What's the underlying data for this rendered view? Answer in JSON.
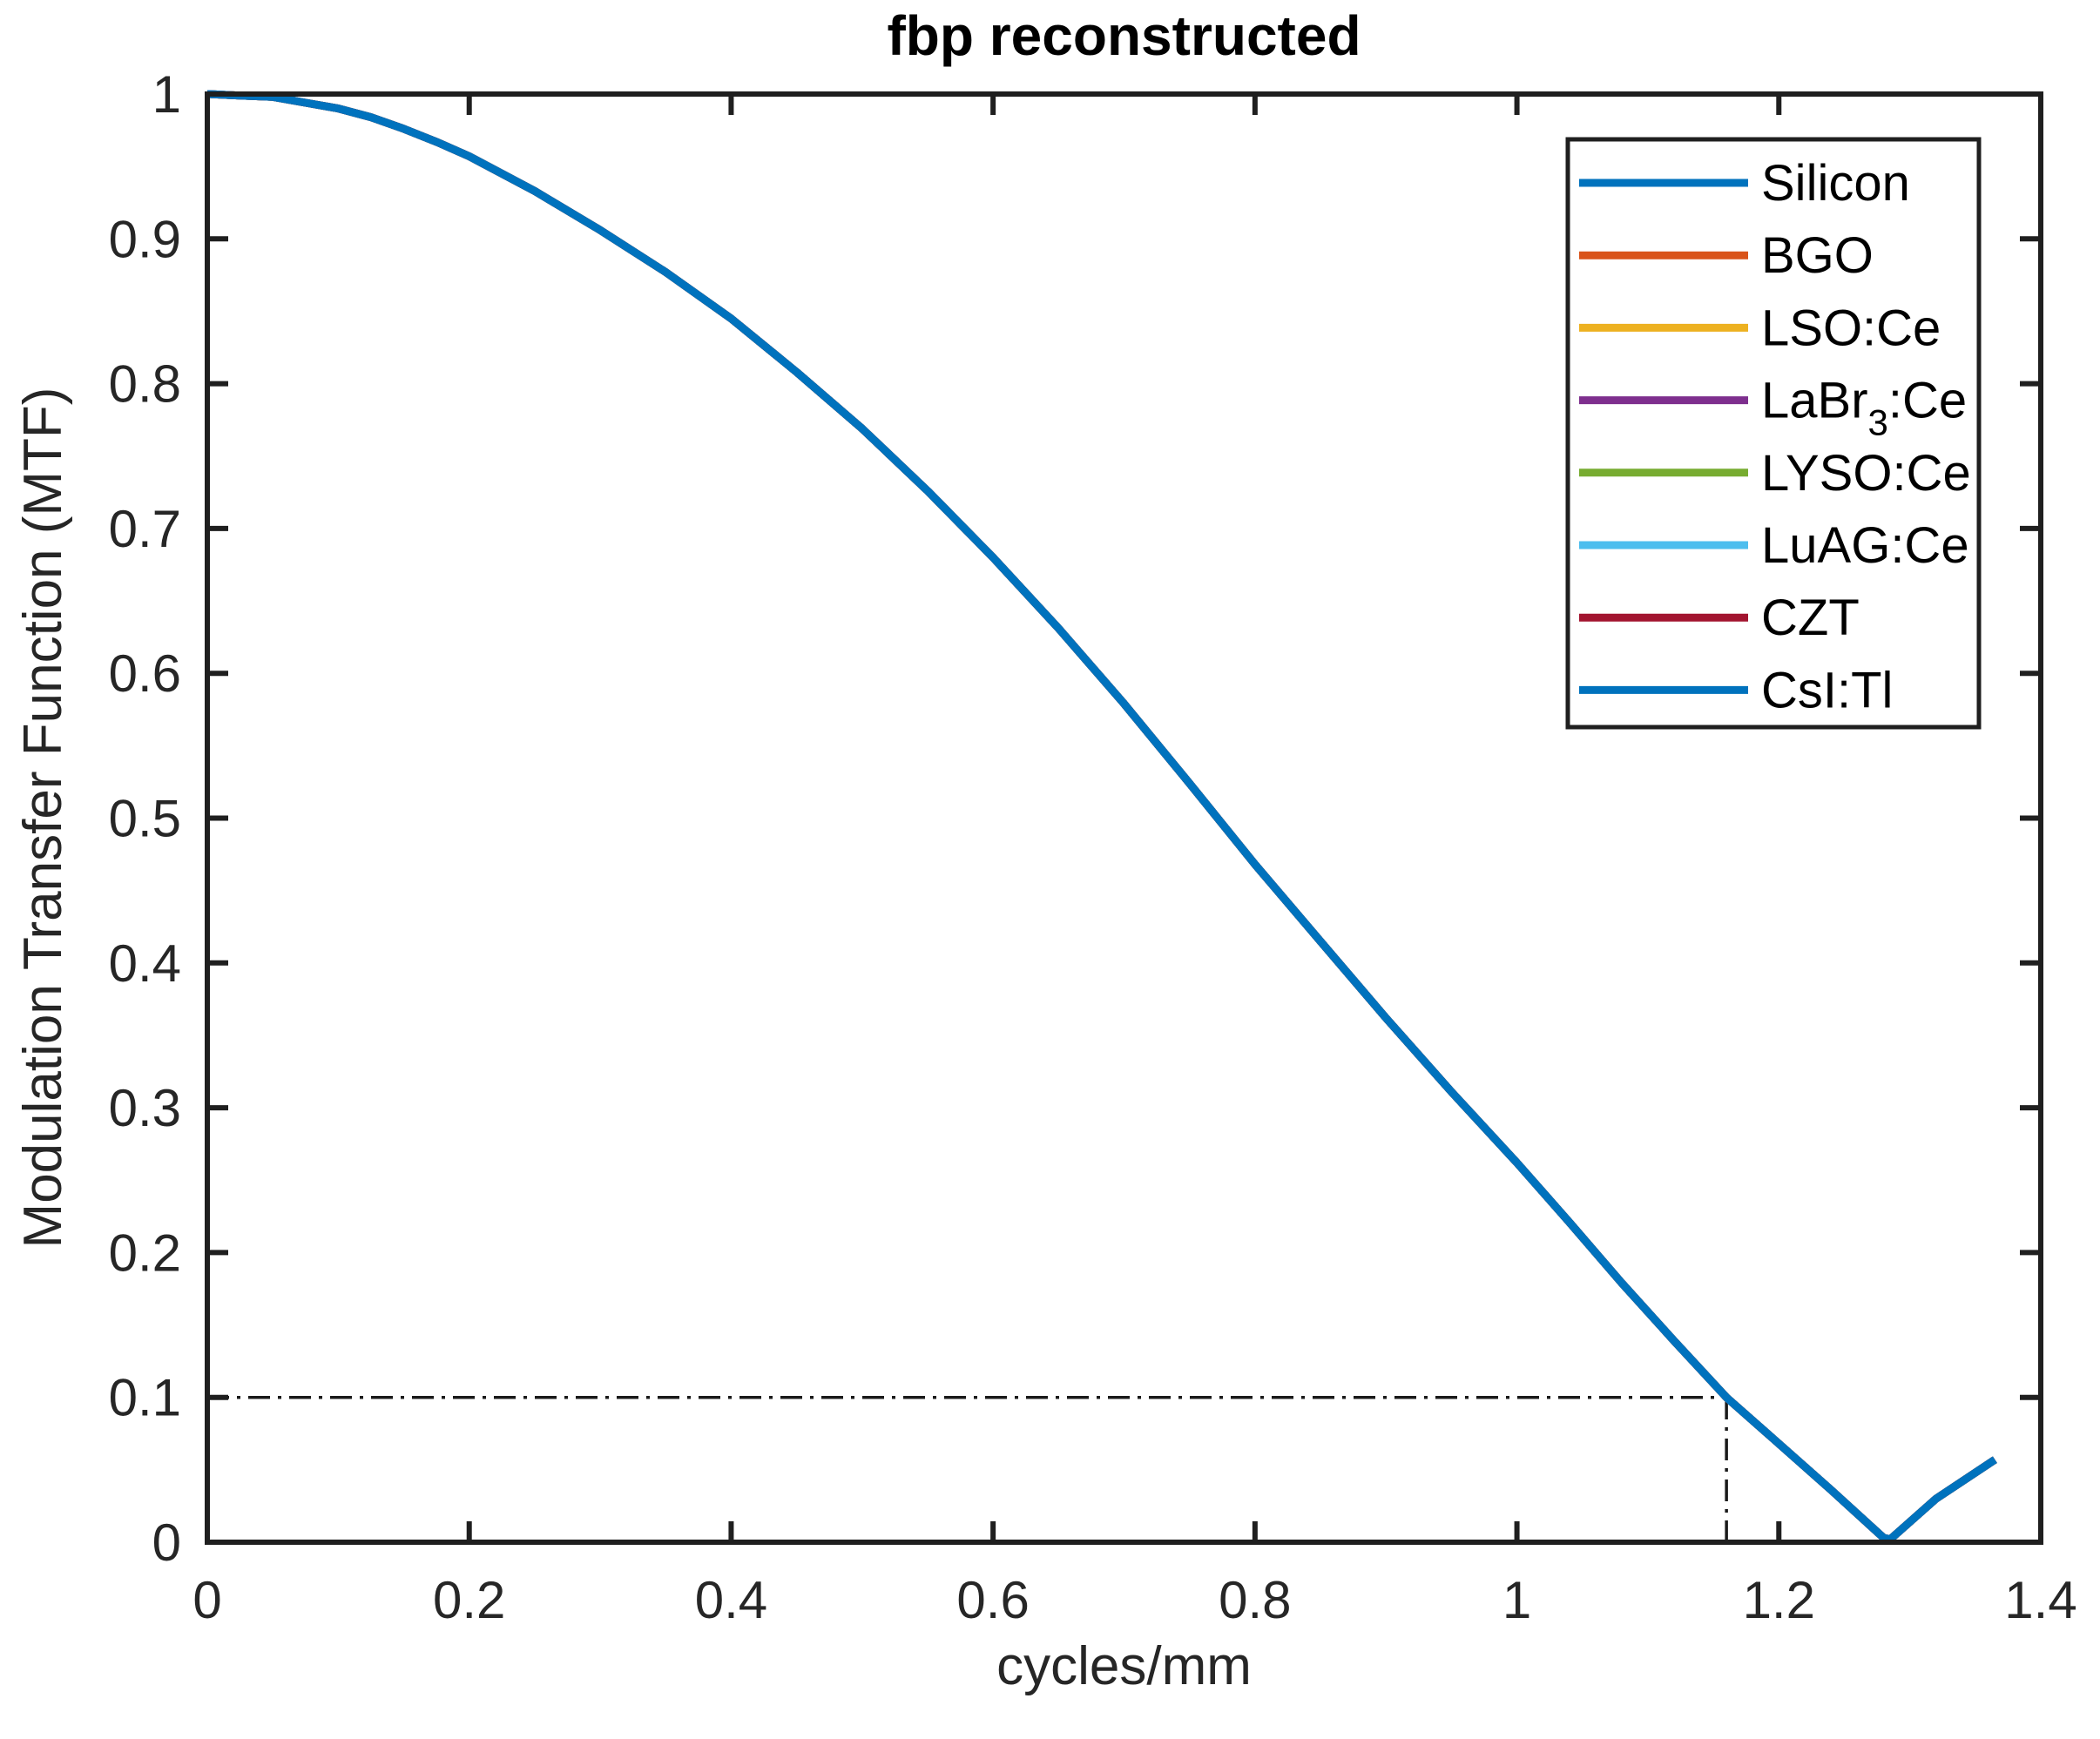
{
  "chart_data": {
    "type": "line",
    "title": "fbp reconstructed",
    "xlabel": "cycles/mm",
    "ylabel": "Modulation Transfer Function (MTF)",
    "xlim": [
      0,
      1.4
    ],
    "ylim": [
      0,
      1
    ],
    "xticks": [
      0,
      0.2,
      0.4,
      0.6,
      0.8,
      1,
      1.2,
      1.4
    ],
    "yticks": [
      0,
      0.1,
      0.2,
      0.3,
      0.4,
      0.5,
      0.6,
      0.7,
      0.8,
      0.9,
      1
    ],
    "grid": false,
    "axis_color": "#262626",
    "box_color": "#1f1f1f",
    "legend": {
      "position": "northeast",
      "border_color": "#1f1f1f",
      "background": "#ffffff"
    },
    "series": [
      {
        "name": "Silicon",
        "color": "#0072BD",
        "label": {
          "pre": "Silicon",
          "sub": "",
          "post": ""
        }
      },
      {
        "name": "BGO",
        "color": "#D95319",
        "label": {
          "pre": "BGO",
          "sub": "",
          "post": ""
        }
      },
      {
        "name": "LSO:Ce",
        "color": "#EDB120",
        "label": {
          "pre": "LSO:Ce",
          "sub": "",
          "post": ""
        }
      },
      {
        "name": "LaBr3:Ce",
        "color": "#7E2F8E",
        "label": {
          "pre": "LaBr",
          "sub": "3",
          "post": ":Ce"
        }
      },
      {
        "name": "LYSO:Ce",
        "color": "#77AC30",
        "label": {
          "pre": "LYSO:Ce",
          "sub": "",
          "post": ""
        }
      },
      {
        "name": "LuAG:Ce",
        "color": "#4DBEEE",
        "label": {
          "pre": "LuAG:Ce",
          "sub": "",
          "post": ""
        }
      },
      {
        "name": "CZT",
        "color": "#A2142F",
        "label": {
          "pre": "CZT",
          "sub": "",
          "post": ""
        }
      },
      {
        "name": "CsI:Tl",
        "color": "#0072BD",
        "label": {
          "pre": "CsI:Tl",
          "sub": "",
          "post": ""
        }
      }
    ],
    "series_note": "All eight detector-material curves coincide exactly; the single visible curve is the overlap (last-drawn CsI:Tl on top).",
    "shared_curve": {
      "x": [
        0,
        0.025,
        0.05,
        0.075,
        0.1,
        0.125,
        0.15,
        0.175,
        0.2,
        0.25,
        0.3,
        0.35,
        0.4,
        0.45,
        0.5,
        0.55,
        0.6,
        0.65,
        0.7,
        0.75,
        0.8,
        0.85,
        0.9,
        0.95,
        1.0,
        1.04,
        1.08,
        1.12,
        1.16,
        1.2,
        1.24,
        1.28,
        1.285,
        1.32,
        1.365
      ],
      "y": [
        1,
        0.999,
        0.998,
        0.994,
        0.99,
        0.984,
        0.976,
        0.967,
        0.957,
        0.933,
        0.906,
        0.877,
        0.845,
        0.808,
        0.769,
        0.726,
        0.68,
        0.631,
        0.579,
        0.524,
        0.468,
        0.415,
        0.362,
        0.311,
        0.262,
        0.221,
        0.179,
        0.139,
        0.1,
        0.068,
        0.036,
        0.003,
        0.002,
        0.03,
        0.057
      ]
    },
    "reference_lines": [
      {
        "orientation": "horizontal",
        "y": 0.1,
        "x_from": 0,
        "x_to": 1.16,
        "style": "dash-dot",
        "color": "#1a1a1a"
      },
      {
        "orientation": "vertical",
        "x": 1.16,
        "y_from": 0,
        "y_to": 0.1,
        "style": "dash-dot",
        "color": "#1a1a1a"
      }
    ],
    "annotations": {
      "mtf_0p1_frequency_cycles_per_mm": 1.16
    }
  }
}
